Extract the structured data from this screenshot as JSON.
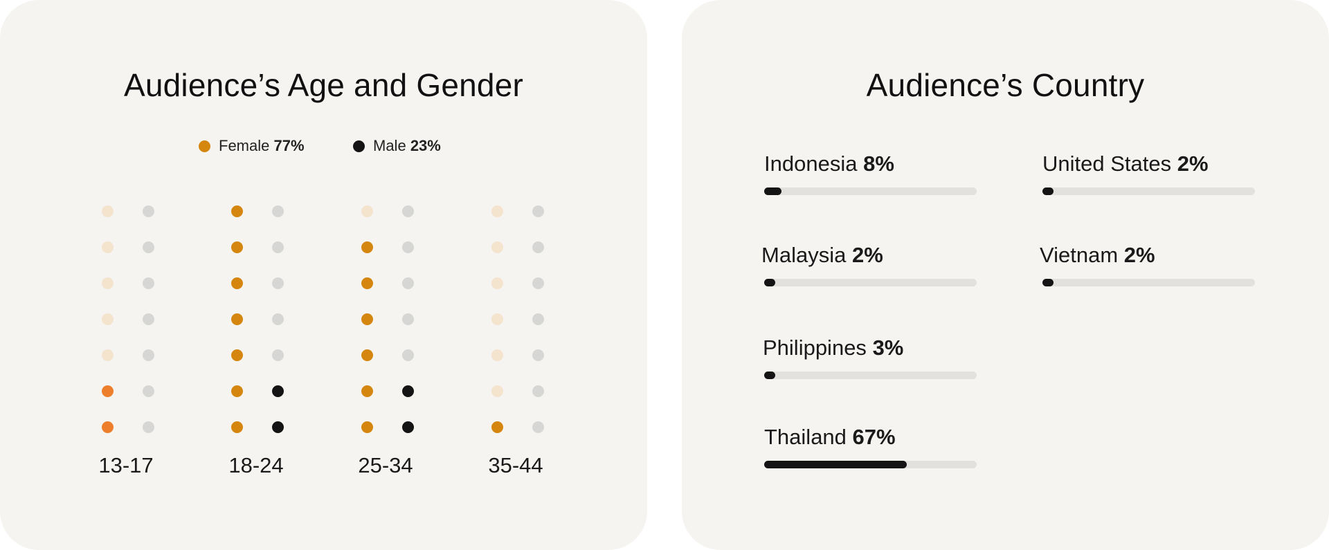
{
  "age_gender": {
    "title": "Audience’s Age and Gender",
    "legend": [
      {
        "label": "Female",
        "value": "77%",
        "color": "#d4860f"
      },
      {
        "label": "Male",
        "value": "23%",
        "color": "#141414"
      }
    ],
    "colors": {
      "female_on": "#d4860f",
      "female_on_13_17": "#ed7f2c",
      "female_off": "#f4e3cd",
      "male_on": "#141414",
      "male_off": "#d6d6d4"
    },
    "dots_per_column": 7,
    "groups": [
      {
        "label": "13-17",
        "female_filled": 2,
        "male_filled": 0
      },
      {
        "label": "18-24",
        "female_filled": 7,
        "male_filled": 2
      },
      {
        "label": "25-34",
        "female_filled": 6,
        "male_filled": 2
      },
      {
        "label": "35-44",
        "female_filled": 1,
        "male_filled": 0
      }
    ]
  },
  "country": {
    "title": "Audience’s Country",
    "items": [
      {
        "name": "Indonesia",
        "value": "8%",
        "percent": 8
      },
      {
        "name": "United States",
        "value": "2%",
        "percent": 2
      },
      {
        "name": "Malaysia",
        "value": "2%",
        "percent": 2
      },
      {
        "name": "Vietnam",
        "value": "2%",
        "percent": 2
      },
      {
        "name": "Philippines",
        "value": "3%",
        "percent": 3
      },
      {
        "name": "Thailand",
        "value": "67%",
        "percent": 67
      }
    ]
  }
}
